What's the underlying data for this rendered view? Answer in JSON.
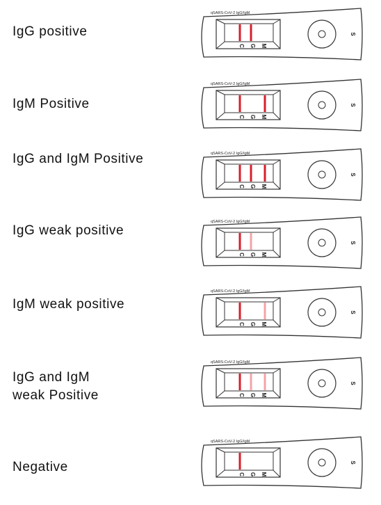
{
  "brand_text": "qSARS-CoV-2 IgG/IgM",
  "line_markers": [
    "C",
    "G",
    "M"
  ],
  "sample_marker": "S",
  "colors": {
    "strong": "#d81e2a",
    "weak": "#f4a3a8",
    "outline": "#333333"
  },
  "results": [
    {
      "label": "IgG positive",
      "C": "strong",
      "G": "strong",
      "M": "none"
    },
    {
      "label": "IgM Positive",
      "C": "strong",
      "G": "none",
      "M": "strong"
    },
    {
      "label": "IgG and IgM Positive",
      "C": "strong",
      "G": "strong",
      "M": "strong"
    },
    {
      "label": "IgG weak positive",
      "C": "strong",
      "G": "weak",
      "M": "none"
    },
    {
      "label": "IgM weak positive",
      "C": "strong",
      "G": "none",
      "M": "weak"
    },
    {
      "label": "IgG and IgM\nweak Positive",
      "C": "strong",
      "G": "weak",
      "M": "weak"
    },
    {
      "label": "Negative",
      "C": "strong",
      "G": "none",
      "M": "none"
    }
  ]
}
